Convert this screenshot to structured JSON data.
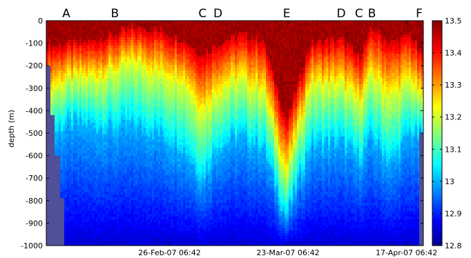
{
  "chart_data": {
    "type": "heatmap",
    "title": "",
    "xlabel": "",
    "ylabel": "depth (m)",
    "ylim": [
      -1000,
      0
    ],
    "y_ticks": [
      {
        "value": 0,
        "label": "0"
      },
      {
        "value": -100,
        "label": "-100"
      },
      {
        "value": -200,
        "label": "-200"
      },
      {
        "value": -300,
        "label": "-300"
      },
      {
        "value": -400,
        "label": "-400"
      },
      {
        "value": -500,
        "label": "-500"
      },
      {
        "value": -600,
        "label": "-600"
      },
      {
        "value": -700,
        "label": "-700"
      },
      {
        "value": -800,
        "label": "-800"
      },
      {
        "value": -900,
        "label": "-900"
      },
      {
        "value": -1000,
        "label": "-1000"
      }
    ],
    "xlim": [
      "2007-01-31T06:42",
      "2007-04-20T20:00"
    ],
    "x_ticks": [
      {
        "value": "2007-02-26T06:42",
        "label": "26-Feb-07 06:42"
      },
      {
        "value": "2007-03-23T06:42",
        "label": "23-Mar-07 06:42"
      },
      {
        "value": "2007-04-17T06:42",
        "label": "17-Apr-07 06:42"
      }
    ],
    "markers": [
      {
        "label": "A",
        "x": "2007-02-04T12:00"
      },
      {
        "label": "B",
        "x": "2007-02-14T18:00"
      },
      {
        "label": "C",
        "x": "2007-03-05T06:00"
      },
      {
        "label": "D",
        "x": "2007-03-08T12:00"
      },
      {
        "label": "E",
        "x": "2007-03-23T00:00"
      },
      {
        "label": "D",
        "x": "2007-04-03T12:00"
      },
      {
        "label": "C",
        "x": "2007-04-07T06:00"
      },
      {
        "label": "B",
        "x": "2007-04-10T00:00"
      },
      {
        "label": "F",
        "x": "2007-04-20T06:00"
      }
    ],
    "colorbar": {
      "min": 12.8,
      "max": 13.5,
      "ticks": [
        {
          "value": 13.5,
          "label": "13.5"
        },
        {
          "value": 13.4,
          "label": "13.4"
        },
        {
          "value": 13.3,
          "label": "13.3"
        },
        {
          "value": 13.2,
          "label": "13.2"
        },
        {
          "value": 13.1,
          "label": "13.1"
        },
        {
          "value": 13.0,
          "label": "13"
        },
        {
          "value": 12.9,
          "label": "12.9"
        },
        {
          "value": 12.8,
          "label": "12.8"
        }
      ],
      "colormap": "jet",
      "low_color": "#00008f",
      "high_color": "#800000"
    },
    "grid": false,
    "legend": "none",
    "colors": {
      "no_data": "#505098"
    },
    "profiles_note_free": true,
    "profiles": [
      {
        "x": "2007-01-31T12:00",
        "surface_depth": -110,
        "mid_depth": -300,
        "deep_depth": -520
      },
      {
        "x": "2007-02-05T00:00",
        "surface_depth": -100,
        "mid_depth": -260,
        "deep_depth": -460
      },
      {
        "x": "2007-02-10T00:00",
        "surface_depth": -90,
        "mid_depth": -250,
        "deep_depth": -470
      },
      {
        "x": "2007-02-14T18:00",
        "surface_depth": -60,
        "mid_depth": -220,
        "deep_depth": -480
      },
      {
        "x": "2007-02-19T00:00",
        "surface_depth": -30,
        "mid_depth": -180,
        "deep_depth": -470
      },
      {
        "x": "2007-02-24T00:00",
        "surface_depth": -40,
        "mid_depth": -230,
        "deep_depth": -500
      },
      {
        "x": "2007-03-01T00:00",
        "surface_depth": -80,
        "mid_depth": -250,
        "deep_depth": -560
      },
      {
        "x": "2007-03-05T06:00",
        "surface_depth": -150,
        "mid_depth": -400,
        "deep_depth": -700
      },
      {
        "x": "2007-03-08T12:00",
        "surface_depth": -100,
        "mid_depth": -300,
        "deep_depth": -560
      },
      {
        "x": "2007-03-13T00:00",
        "surface_depth": -60,
        "mid_depth": -260,
        "deep_depth": -520
      },
      {
        "x": "2007-03-18T00:00",
        "surface_depth": -80,
        "mid_depth": -300,
        "deep_depth": -560
      },
      {
        "x": "2007-03-23T00:00",
        "surface_depth": -450,
        "mid_depth": -680,
        "deep_depth": -880
      },
      {
        "x": "2007-03-28T00:00",
        "surface_depth": -100,
        "mid_depth": -280,
        "deep_depth": -560
      },
      {
        "x": "2007-04-03T12:00",
        "surface_depth": -80,
        "mid_depth": -280,
        "deep_depth": -540
      },
      {
        "x": "2007-04-07T06:00",
        "surface_depth": -160,
        "mid_depth": -360,
        "deep_depth": -620
      },
      {
        "x": "2007-04-10T00:00",
        "surface_depth": -30,
        "mid_depth": -240,
        "deep_depth": -520
      },
      {
        "x": "2007-04-14T00:00",
        "surface_depth": -100,
        "mid_depth": -330,
        "deep_depth": -640
      },
      {
        "x": "2007-04-18T00:00",
        "surface_depth": -60,
        "mid_depth": -260,
        "deep_depth": -500
      },
      {
        "x": "2007-04-20T12:00",
        "surface_depth": -150,
        "mid_depth": -350,
        "deep_depth": -520
      }
    ]
  }
}
